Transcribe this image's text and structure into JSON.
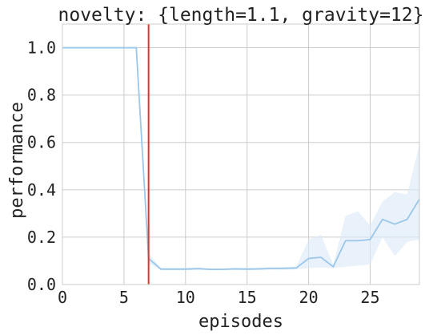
{
  "chart_data": {
    "type": "line",
    "title": "novelty: {length=1.1, gravity=12}",
    "xlabel": "episodes",
    "ylabel": "performance",
    "xlim": [
      0,
      29
    ],
    "ylim": [
      0,
      1.1
    ],
    "xticks": [
      0,
      5,
      10,
      15,
      20,
      25
    ],
    "yticks": [
      0.0,
      0.2,
      0.4,
      0.6,
      0.8,
      1.0
    ],
    "xtick_labels": [
      "0",
      "5",
      "10",
      "15",
      "20",
      "25"
    ],
    "ytick_labels": [
      "0.0",
      "0.2",
      "0.4",
      "0.6",
      "0.8",
      "1.0"
    ],
    "grid": true,
    "series": [
      {
        "color": "#9ac7ea",
        "band_color": "#dbe9f7",
        "x": [
          0,
          1,
          2,
          3,
          4,
          5,
          6,
          7,
          8,
          9,
          10,
          11,
          12,
          13,
          14,
          15,
          16,
          17,
          18,
          19,
          20,
          21,
          22,
          23,
          24,
          25,
          26,
          27,
          28,
          29
        ],
        "y": [
          1.0,
          1.0,
          1.0,
          1.0,
          1.0,
          1.0,
          1.0,
          0.11,
          0.065,
          0.065,
          0.065,
          0.067,
          0.064,
          0.064,
          0.066,
          0.065,
          0.066,
          0.068,
          0.068,
          0.07,
          0.11,
          0.115,
          0.075,
          0.185,
          0.185,
          0.19,
          0.275,
          0.255,
          0.275,
          0.36
        ],
        "lower": [
          1.0,
          1.0,
          1.0,
          1.0,
          1.0,
          1.0,
          1.0,
          0.09,
          0.06,
          0.06,
          0.06,
          0.062,
          0.06,
          0.06,
          0.061,
          0.06,
          0.061,
          0.062,
          0.062,
          0.064,
          0.07,
          0.072,
          0.07,
          0.075,
          0.08,
          0.085,
          0.2,
          0.12,
          0.18,
          0.19
        ],
        "upper": [
          1.0,
          1.0,
          1.0,
          1.0,
          1.0,
          1.0,
          1.0,
          0.13,
          0.07,
          0.07,
          0.07,
          0.072,
          0.068,
          0.068,
          0.071,
          0.07,
          0.071,
          0.074,
          0.074,
          0.076,
          0.19,
          0.21,
          0.085,
          0.29,
          0.31,
          0.25,
          0.35,
          0.39,
          0.38,
          0.59
        ]
      }
    ],
    "vline": {
      "x": 7,
      "color": "#e8332b"
    }
  }
}
